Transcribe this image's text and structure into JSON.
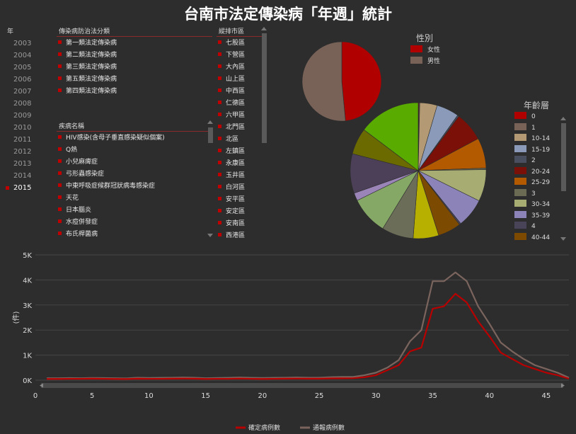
{
  "title": "台南市法定傳染病「年週」統計",
  "filters": {
    "year": {
      "header": "年",
      "items": [
        "2003",
        "2004",
        "2005",
        "2006",
        "2007",
        "2008",
        "2009",
        "2010",
        "2011",
        "2012",
        "2013",
        "2014",
        "2015"
      ],
      "selected": "2015"
    },
    "category": {
      "header": "傳染病防治法分類",
      "items": [
        "第一類法定傳染病",
        "第二類法定傳染病",
        "第三類法定傳染病",
        "第五類法定傳染病",
        "第四類法定傳染病"
      ]
    },
    "disease": {
      "header": "疾病名稱",
      "items": [
        "HIV感染(含母子垂直感染疑似個案)",
        "Q熱",
        "小兒麻痺症",
        "弓形蟲感染症",
        "中東呼吸症候群冠狀病毒感染症",
        "天花",
        "日本腦炎",
        "水痘併發症",
        "布氏桿菌病"
      ]
    },
    "district": {
      "header": "縱排市區",
      "items": [
        "七股區",
        "下營區",
        "大內區",
        "山上區",
        "中西區",
        "仁德區",
        "六甲區",
        "北門區",
        "北區",
        "左鎮區",
        "永康區",
        "玉井區",
        "白河區",
        "安平區",
        "安定區",
        "安南區",
        "西港區"
      ]
    }
  },
  "colors": {
    "accent": "#c00000",
    "line_confirmed": "#b80000",
    "line_reported": "#7a645d"
  },
  "gender_chart": {
    "title": "性別",
    "slices": [
      {
        "label": "女性",
        "value": 48.5,
        "color": "#b00000"
      },
      {
        "label": "男性",
        "value": 51.5,
        "color": "#786258"
      }
    ]
  },
  "age_chart": {
    "title": "年齡層",
    "legend": [
      {
        "label": "0",
        "color": "#b00000"
      },
      {
        "label": "1",
        "color": "#786258"
      },
      {
        "label": "10-14",
        "color": "#b39a74"
      },
      {
        "label": "15-19",
        "color": "#8a9ab8"
      },
      {
        "label": "2",
        "color": "#4a4f60"
      },
      {
        "label": "20-24",
        "color": "#7a1008"
      },
      {
        "label": "25-29",
        "color": "#b35a00"
      },
      {
        "label": "3",
        "color": "#6b6a52"
      },
      {
        "label": "30-34",
        "color": "#a6ac72"
      },
      {
        "label": "35-39",
        "color": "#8c84b8"
      },
      {
        "label": "4",
        "color": "#4a4458"
      },
      {
        "label": "40-44",
        "color": "#7c4a00"
      }
    ],
    "slices": [
      {
        "label": "0",
        "value": 0.2,
        "color": "#b00000"
      },
      {
        "label": "1",
        "value": 0.2,
        "color": "#786258"
      },
      {
        "label": "10-14",
        "value": 4.5,
        "color": "#b39a74"
      },
      {
        "label": "15-19",
        "value": 5.8,
        "color": "#8a9ab8"
      },
      {
        "label": "2",
        "value": 0.4,
        "color": "#4a4f60"
      },
      {
        "label": "20-24",
        "value": 7.6,
        "color": "#7a1008"
      },
      {
        "label": "25-29",
        "value": 7.8,
        "color": "#b35a00"
      },
      {
        "label": "3",
        "value": 0.4,
        "color": "#6b6a52"
      },
      {
        "label": "30-34",
        "value": 8.2,
        "color": "#a6ac72"
      },
      {
        "label": "35-39",
        "value": 7.5,
        "color": "#8c84b8"
      },
      {
        "label": "4",
        "value": 0.4,
        "color": "#4a4458"
      },
      {
        "label": "40-44",
        "value": 6.0,
        "color": "#7c4a00"
      },
      {
        "label": "",
        "value": 6.6,
        "color": "#b8b000"
      },
      {
        "label": "",
        "value": 8.2,
        "color": "#6b6d58"
      },
      {
        "label": "",
        "value": 9.8,
        "color": "#86a866"
      },
      {
        "label": "",
        "value": 2.0,
        "color": "#9a84b8"
      },
      {
        "label": "",
        "value": 10.2,
        "color": "#4c4058"
      },
      {
        "label": "",
        "value": 6.8,
        "color": "#6b6a00"
      },
      {
        "label": "",
        "value": 16.0,
        "color": "#5aab00"
      }
    ]
  },
  "chart_data": {
    "type": "line",
    "title": "",
    "xlabel": "",
    "ylabel": "(件)",
    "xlim": [
      0,
      47
    ],
    "ylim": [
      0,
      5000
    ],
    "xticks": [
      0,
      5,
      10,
      15,
      20,
      25,
      30,
      35,
      40,
      45
    ],
    "yticks": [
      0,
      1000,
      2000,
      3000,
      4000,
      5000
    ],
    "ytick_labels": [
      "0K",
      "1K",
      "2K",
      "3K",
      "4K",
      "5K"
    ],
    "grid": true,
    "legend_position": "bottom",
    "x": [
      1,
      2,
      3,
      4,
      5,
      6,
      7,
      8,
      9,
      10,
      11,
      12,
      13,
      14,
      15,
      16,
      17,
      18,
      19,
      20,
      21,
      22,
      23,
      24,
      25,
      26,
      27,
      28,
      29,
      30,
      31,
      32,
      33,
      34,
      35,
      36,
      37,
      38,
      39,
      40,
      41,
      42,
      43,
      44,
      45,
      46,
      47
    ],
    "series": [
      {
        "name": "確定病例數",
        "color": "#b80000",
        "values": [
          50,
          50,
          55,
          55,
          60,
          55,
          50,
          45,
          60,
          55,
          55,
          60,
          65,
          60,
          50,
          55,
          55,
          65,
          55,
          50,
          55,
          60,
          65,
          60,
          60,
          70,
          75,
          80,
          120,
          200,
          400,
          600,
          1150,
          1300,
          2850,
          2950,
          3450,
          3100,
          2350,
          1750,
          1100,
          850,
          600,
          450,
          300,
          200,
          60
        ]
      },
      {
        "name": "通報病例數",
        "color": "#7a645d",
        "values": [
          80,
          80,
          85,
          80,
          90,
          85,
          80,
          70,
          100,
          90,
          95,
          100,
          110,
          100,
          80,
          90,
          95,
          110,
          95,
          90,
          95,
          100,
          110,
          100,
          100,
          120,
          130,
          130,
          200,
          300,
          500,
          800,
          1550,
          2000,
          3950,
          3950,
          4300,
          3950,
          2950,
          2250,
          1500,
          1150,
          850,
          600,
          450,
          300,
          100
        ]
      }
    ]
  }
}
